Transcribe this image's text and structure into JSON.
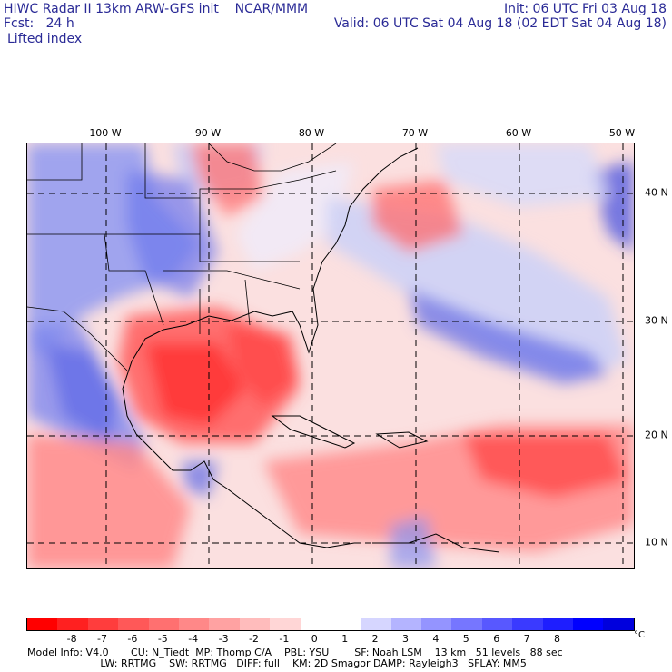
{
  "header": {
    "line1_left": "HIWC Radar II 13km ARW-GFS init    NCAR/MMM",
    "line1_right": "Init: 06 UTC Fri 03 Aug 18",
    "line2_left": "Fcst:   24 h",
    "line2_right": "Valid: 06 UTC Sat 04 Aug 18 (02 EDT Sat 04 Aug 18)",
    "field": "Lifted index"
  },
  "map": {
    "lon_labels": [
      "100 W",
      "90 W",
      "80 W",
      "70 W",
      "60 W",
      "50 W"
    ],
    "lat_labels": [
      "40 N",
      "30 N",
      "20 N",
      "10 N"
    ]
  },
  "colorbar": {
    "ticks": [
      "-8",
      "-7",
      "-6",
      "-5",
      "-4",
      "-3",
      "-2",
      "-1",
      "0",
      "1",
      "2",
      "3",
      "4",
      "5",
      "6",
      "7",
      "8"
    ],
    "unit": "°C",
    "colors": [
      "#ff0000",
      "#ff2020",
      "#ff3d3d",
      "#ff5858",
      "#ff7070",
      "#ff8888",
      "#ffa2a2",
      "#ffbcbc",
      "#ffd6d6",
      "#ffffff",
      "#ffffff",
      "#d6d6ff",
      "#b4b4ff",
      "#9494ff",
      "#7676ff",
      "#5858ff",
      "#3a3aff",
      "#1e1eff",
      "#0000ff",
      "#0000dd"
    ]
  },
  "footer": {
    "line1": "Model Info: V4.0       CU: N_Tiedt  MP: Thomp C/A    PBL: YSU        SF: Noah LSM    13 km   51 levels   88 sec",
    "line2": "                       LW: RRTMG    SW: RRTMG   DIFF: full    KM: 2D Smagor DAMP: Rayleigh3   SFLAY: MM5"
  }
}
